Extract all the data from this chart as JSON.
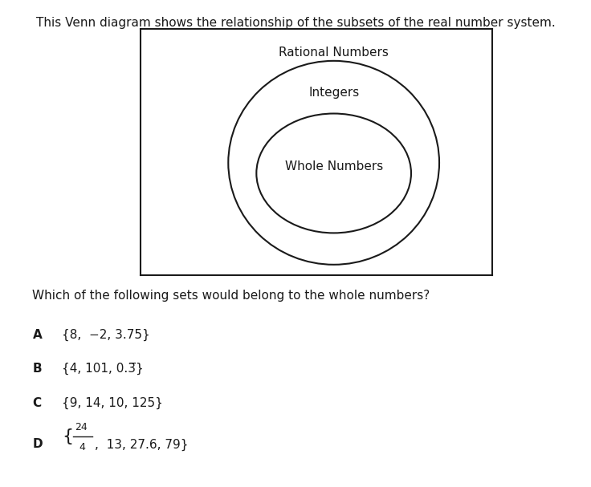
{
  "title": "This Venn diagram shows the relationship of the subsets of the real number system.",
  "title_fontsize": 11,
  "question": "Which of the following sets would belong to the whole numbers?",
  "question_fontsize": 11,
  "rational_label": "Rational Numbers",
  "integers_label": "Integers",
  "whole_label": "Whole Numbers",
  "bg_color": "#ffffff",
  "text_color": "#1a1a1a",
  "ellipse_color": "#1a1a1a",
  "box_color": "#1a1a1a",
  "answer_labels": [
    "A",
    "B",
    "C",
    "D"
  ],
  "answer_A": "{8,  -2, 3.75}",
  "answer_B_pre": "{4, 101, 0.3",
  "answer_B_post": "}",
  "answer_C": "{9, 14, 10, 125}",
  "answer_D_post": ",  13, 27.6, 79}"
}
